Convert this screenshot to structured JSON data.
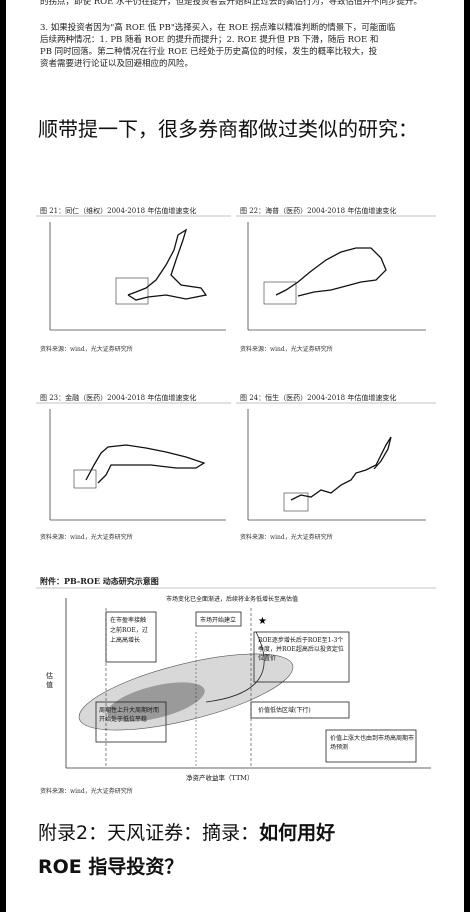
{
  "top_text": {
    "line0": "的拐点，即使 ROE 水平仍在提升，但是投资者会开始纠正过去的高估行为，导致估值并不同步提升。",
    "para3": "3. 如果投资者因为\"高 ROE 低 PB\"选择买入，在 ROE 拐点难以精准判断的情景下，可能面临",
    "para3b": "后续两种情况：1. PB 随着 ROE 的提升而提升；2. ROE 提升但 PB 下滑，随后 ROE 和",
    "para3c": "PB 同时回落。第二种情况在行业 ROE 已经处于历史高位的时候，发生的概率比较大，投",
    "para3d": "资者需要进行论证以及回避相应的风险。"
  },
  "heading1": "顺带提一下，很多券商都做过类似的研究：",
  "figures": [
    {
      "caption": "图 21：同仁（维权）2004-2018 年估值增速变化",
      "source": "资料来源：wind，光大证券研究所"
    },
    {
      "caption": "图 22：海普（医药）2004-2018 年估值增速变化",
      "source": "资料来源：wind，光大证券研究所"
    },
    {
      "caption": "图 23：金融（医药）2004-2018 年估值增速变化",
      "source": "资料来源：wind，光大证券研究所"
    },
    {
      "caption": "图 24：恒生（医药）2004-2018 年估值增速变化",
      "source": "资料来源：wind，光大证券研究所"
    }
  ],
  "big_figure": {
    "caption": "附件：PB-ROE 动态研究示意图",
    "top_note": "市场变化已全面渐进，后续将业务低增长至高估值",
    "box1": "在市盈率接触",
    "box1b": "之前ROE，过",
    "box1c": "上高高增长",
    "box_right": "ROE逐步增长后于ROE至1-3个季度，并ROE超高后以投资定位位置价",
    "box_bottom": "周期性上升大周期时而开始处于低位平稳",
    "label_center": "市场开始建立",
    "label_mid": "价值低估区域(下行)",
    "right_bottom_box": "价值上涨大也由到市场高周期市场预测",
    "y_axis": "估值",
    "x_axis": "净资产收益率（TTM）",
    "source": "资料来源：wind，光大证券研究所"
  },
  "heading2_prefix": "附录2：天风证券：摘录：",
  "heading2_bold": "如何用好",
  "heading2_line2": "ROE 指导投资？"
}
